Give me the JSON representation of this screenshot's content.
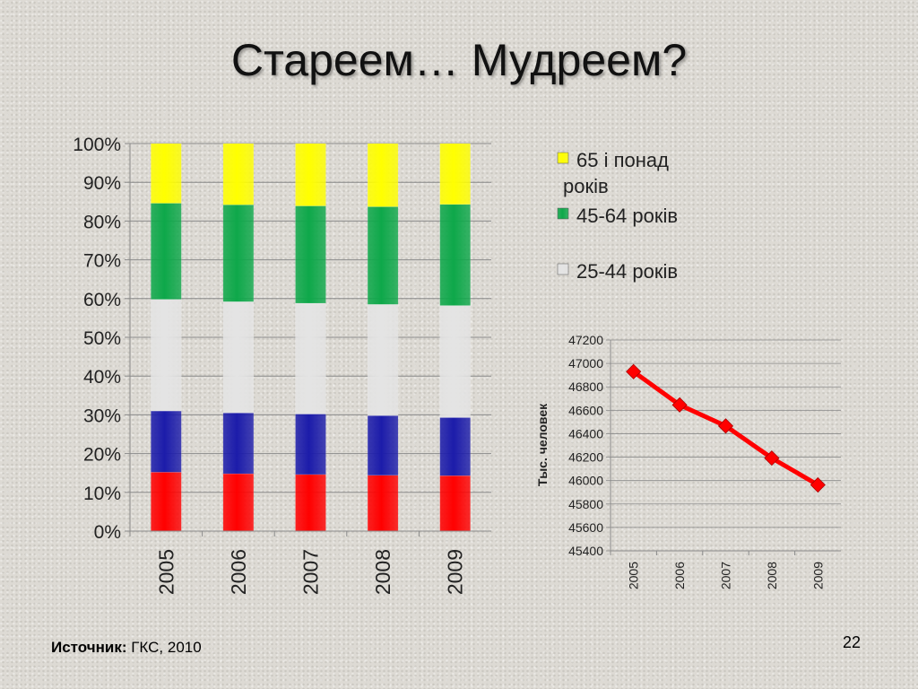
{
  "slide": {
    "title": "Стареем… Мудреем?",
    "source_label": "Источник:",
    "source_value": " ГКС, 2010",
    "page_number": "22"
  },
  "chart_data": [
    {
      "type": "bar",
      "stacked": "percent",
      "categories": [
        "2005",
        "2006",
        "2007",
        "2008",
        "2009"
      ],
      "series": [
        {
          "name": "",
          "color": "#ff0000",
          "values": [
            15.2,
            14.8,
            14.6,
            14.4,
            14.3
          ]
        },
        {
          "name": "",
          "color": "#1c1caa",
          "values": [
            15.8,
            15.7,
            15.6,
            15.4,
            15.0
          ]
        },
        {
          "name": "25-44 років",
          "color": "#e4e4e4",
          "values": [
            28.8,
            28.7,
            28.6,
            28.7,
            28.9
          ]
        },
        {
          "name": "45-64 років",
          "color": "#0ea84a",
          "values": [
            24.8,
            25.0,
            25.1,
            25.2,
            26.1
          ]
        },
        {
          "name": "65 і понад років",
          "color": "#ffff00",
          "values": [
            15.4,
            15.8,
            16.1,
            16.3,
            15.7
          ]
        }
      ],
      "y_ticks": [
        "0%",
        "10%",
        "20%",
        "30%",
        "40%",
        "50%",
        "60%",
        "70%",
        "80%",
        "90%",
        "100%"
      ],
      "ylim": [
        0,
        100
      ],
      "grid": true,
      "legend_position": "right",
      "legend_entries": [
        "65 і понад років",
        "45-64 років",
        "25-44 років"
      ]
    },
    {
      "type": "line",
      "x": [
        "2005",
        "2006",
        "2007",
        "2008",
        "2009"
      ],
      "series": [
        {
          "name": "",
          "color": "#ff0000",
          "values": [
            46930,
            46646,
            46466,
            46192,
            45963
          ]
        }
      ],
      "ylabel": "Тыс. человек",
      "ylim": [
        45400,
        47200
      ],
      "y_ticks": [
        "45400",
        "45600",
        "45800",
        "46000",
        "46200",
        "46400",
        "46600",
        "46800",
        "47000",
        "47200"
      ],
      "grid": true
    }
  ]
}
